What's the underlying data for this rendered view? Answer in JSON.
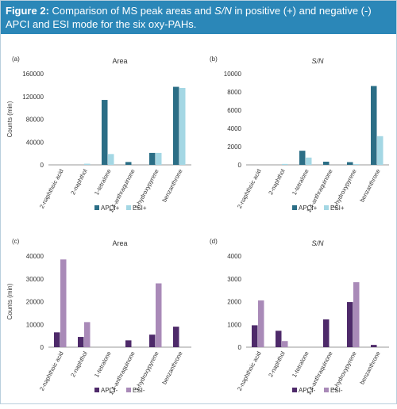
{
  "figure": {
    "label": "Figure 2:",
    "caption_parts": [
      "Comparison of MS peak areas and ",
      "S/N",
      " in positive (+) and negative (-) APCI and ESI mode for the six oxy-PAHs."
    ]
  },
  "colors": {
    "header_bg": "#2b87b8",
    "apci_pos": "#2b6e86",
    "esi_pos": "#a4d7e4",
    "apci_neg": "#4e2a6a",
    "esi_neg": "#a98ab8"
  },
  "chart_data": [
    {
      "panel": "(a)",
      "type": "bar",
      "title": "Area",
      "ylabel": "Counts (min)",
      "xlabel": "",
      "ylim": [
        0,
        160000
      ],
      "yticks": [
        0,
        40000,
        80000,
        120000,
        160000
      ],
      "grid": false,
      "legend": "bottom-center",
      "categories": [
        "2-naphthoic acid",
        "2-naphthol",
        "1-tetralone",
        "1,4-anthraquinone",
        "1-hydroxypyrene",
        "benzanthrone"
      ],
      "series": [
        {
          "name": "APCI+",
          "color": "#2b6e86",
          "values": [
            0,
            0,
            114000,
            5000,
            21000,
            137000
          ]
        },
        {
          "name": "ESI+",
          "color": "#a4d7e4",
          "values": [
            0,
            2000,
            19000,
            0,
            21000,
            135000
          ]
        }
      ]
    },
    {
      "panel": "(b)",
      "type": "bar",
      "title": "S/N",
      "ylabel": "",
      "xlabel": "",
      "ylim": [
        0,
        10000
      ],
      "yticks": [
        0,
        2000,
        4000,
        6000,
        8000,
        10000
      ],
      "grid": false,
      "legend": "bottom-center",
      "categories": [
        "2-naphthoic acid",
        "2-naphthol",
        "1-tetralone",
        "1,4-anthraquinone",
        "1-hydroxypyrene",
        "benzanthrone"
      ],
      "series": [
        {
          "name": "APCI+",
          "color": "#2b6e86",
          "values": [
            0,
            0,
            1550,
            350,
            300,
            8650
          ]
        },
        {
          "name": "ESI+",
          "color": "#a4d7e4",
          "values": [
            0,
            100,
            800,
            0,
            80,
            3150
          ]
        }
      ]
    },
    {
      "panel": "(c)",
      "type": "bar",
      "title": "Area",
      "ylabel": "Counts (min)",
      "xlabel": "",
      "ylim": [
        0,
        40000
      ],
      "yticks": [
        0,
        10000,
        20000,
        30000,
        40000
      ],
      "grid": false,
      "legend": "bottom-center",
      "categories": [
        "2-naphthoic acid",
        "2-naphthol",
        "1-tetralone",
        "1,4-anthraquinone",
        "1-hydroxypyrene",
        "benzanthrone"
      ],
      "series": [
        {
          "name": "APCI-",
          "color": "#4e2a6a",
          "values": [
            6500,
            4500,
            0,
            3000,
            5500,
            9000
          ]
        },
        {
          "name": "ESI-",
          "color": "#a98ab8",
          "values": [
            38500,
            11000,
            0,
            0,
            28000,
            0
          ]
        }
      ]
    },
    {
      "panel": "(d)",
      "type": "bar",
      "title": "S/N",
      "ylabel": "",
      "xlabel": "",
      "ylim": [
        0,
        4000
      ],
      "yticks": [
        0,
        1000,
        2000,
        3000,
        4000
      ],
      "grid": false,
      "legend": "bottom-center",
      "categories": [
        "2-naphthoic acid",
        "2-naphthol",
        "1-tetralone",
        "1,4-anthraquinone",
        "1-hydroxypyrene",
        "benzanthrone"
      ],
      "series": [
        {
          "name": "APCI-",
          "color": "#4e2a6a",
          "values": [
            960,
            720,
            0,
            1220,
            1980,
            100
          ]
        },
        {
          "name": "ESI-",
          "color": "#a98ab8",
          "values": [
            2050,
            270,
            0,
            0,
            2850,
            0
          ]
        }
      ]
    }
  ]
}
